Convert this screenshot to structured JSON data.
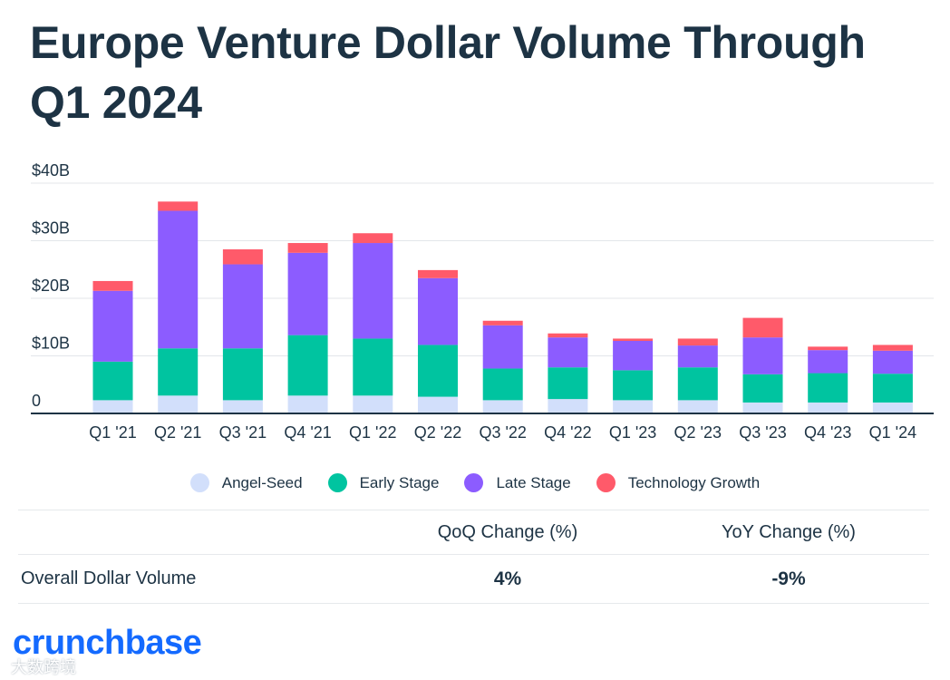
{
  "title": "Europe Venture Dollar Volume Through Q1 2024",
  "chart_data": {
    "type": "bar",
    "stacked": true,
    "categories": [
      "Q1 '21",
      "Q2 '21",
      "Q3 '21",
      "Q4 '21",
      "Q1 '22",
      "Q2 '22",
      "Q3 '22",
      "Q4 '22",
      "Q1 '23",
      "Q2 '23",
      "Q3 '23",
      "Q4 '23",
      "Q1 '24"
    ],
    "series": [
      {
        "name": "Angel-Seed",
        "color": "#d2dffb",
        "values": [
          2.3,
          3.1,
          2.3,
          3.1,
          3.1,
          2.9,
          2.3,
          2.5,
          2.3,
          2.3,
          1.9,
          1.9,
          1.9
        ]
      },
      {
        "name": "Early Stage",
        "color": "#00c4a0",
        "values": [
          6.7,
          8.2,
          9.0,
          10.5,
          9.9,
          9.0,
          5.5,
          5.5,
          5.2,
          5.7,
          4.9,
          5.1,
          5.0
        ]
      },
      {
        "name": "Late Stage",
        "color": "#8c5cff",
        "values": [
          12.3,
          23.9,
          14.6,
          14.3,
          16.6,
          11.6,
          7.5,
          5.2,
          5.1,
          3.8,
          6.4,
          4.0,
          4.0
        ]
      },
      {
        "name": "Technology Growth",
        "color": "#ff5a6a",
        "values": [
          1.7,
          1.6,
          2.6,
          1.7,
          1.7,
          1.4,
          0.8,
          0.7,
          0.4,
          1.2,
          3.4,
          0.6,
          1.0
        ]
      }
    ],
    "y_tick_labels": [
      "0",
      "$10B",
      "$20B",
      "$30B",
      "$40B"
    ],
    "y_ticks": [
      0,
      10,
      20,
      30,
      40
    ],
    "ylim": [
      0,
      40
    ],
    "grid": true,
    "legend_position": "bottom"
  },
  "legend": [
    {
      "label": "Angel-Seed",
      "color": "#d2dffb"
    },
    {
      "label": "Early Stage",
      "color": "#00c4a0"
    },
    {
      "label": "Late Stage",
      "color": "#8c5cff"
    },
    {
      "label": "Technology Growth",
      "color": "#ff5a6a"
    }
  ],
  "table": {
    "headers": {
      "qoq": "QoQ Change (%)",
      "yoy": "YoY Change (%)"
    },
    "row": {
      "label": "Overall Dollar Volume",
      "qoq": "4%",
      "yoy": "-9%"
    }
  },
  "brand": "crunchbase",
  "watermark": "大数跨境"
}
